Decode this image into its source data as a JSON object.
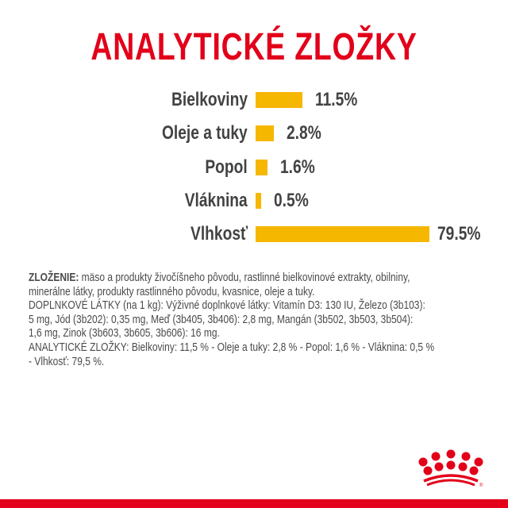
{
  "title": "ANALYTICKÉ ZLOŽKY",
  "chart_data": {
    "type": "bar",
    "orientation": "horizontal",
    "categories": [
      "Bielkoviny",
      "Oleje a tuky",
      "Popol",
      "Vláknina",
      "Vlhkosť"
    ],
    "values": [
      11.5,
      2.8,
      1.6,
      0.5,
      79.5
    ],
    "value_labels": [
      "11.5%",
      "2.8%",
      "1.6%",
      "0.5%",
      "79.5%"
    ],
    "bar_color": "#f6b700",
    "grid": false
  },
  "composition": {
    "heading": "ZLOŽENIE:",
    "lines": [
      " mäso a produkty živočíšneho pôvodu, rastlinné bielkovinové extrakty, obilniny,",
      "minerálne látky, produkty rastlinného pôvodu, kvasnice, oleje a tuky.",
      "DOPLNKOVÉ LÁTKY (na 1 kg): Výživné doplnkové látky: Vitamín D3: 130 IU, Železo (3b103):",
      "5 mg, Jód (3b202): 0,35 mg, Meď (3b405, 3b406): 2,8 mg, Mangán (3b502, 3b503, 3b504):",
      "1,6 mg, Zinok (3b603, 3b605, 3b606): 16 mg.",
      "ANALYTICKÉ ZLOŽKY: Bielkoviny: 11,5 % - Oleje a tuky: 2,8 % - Popol: 1,6 % - Vláknina: 0,5 %",
      "- Vlhkosť: 79,5 %."
    ]
  },
  "logo": {
    "name": "royal-canin-crown-logo",
    "mark": "®"
  },
  "colors": {
    "brand_red": "#e2001a",
    "bar": "#f6b700",
    "text": "#424242"
  }
}
